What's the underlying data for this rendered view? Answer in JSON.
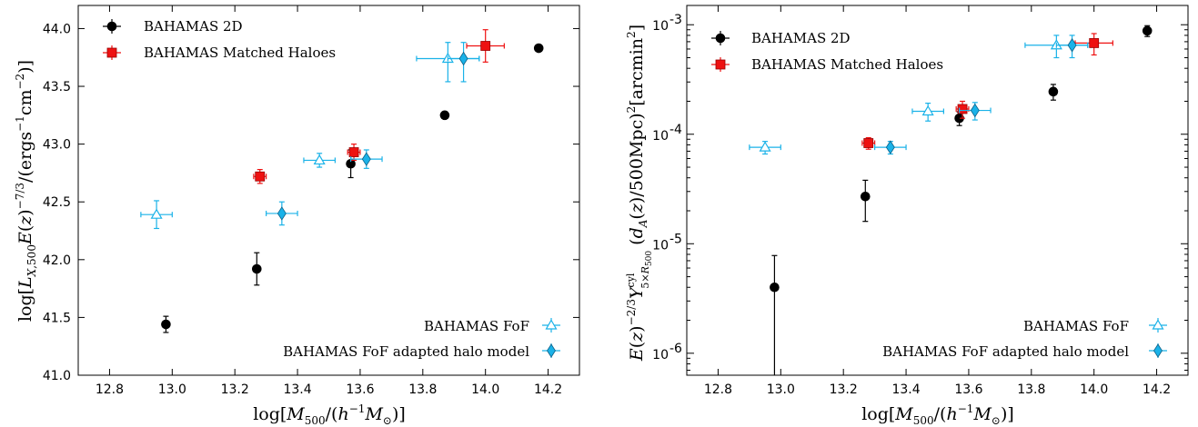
{
  "chart_data": [
    {
      "type": "scatter",
      "title": "",
      "xlabel": "log[M500/(h^-1 M⊙)]",
      "ylabel": "log[L_X,500 E(z)^-7/3 /(ergs^-1cm^-2)]",
      "xlim": [
        12.7,
        14.3
      ],
      "ylim": [
        41.0,
        44.2
      ],
      "yscale": "linear",
      "xticks": [
        "12.8",
        "13.0",
        "13.2",
        "13.4",
        "13.6",
        "13.8",
        "14.0",
        "14.2"
      ],
      "yticks": [
        "41.0",
        "41.5",
        "42.0",
        "42.5",
        "43.0",
        "43.5",
        "44.0"
      ],
      "legend_top": "top-left",
      "legend_bottom": "bottom-right",
      "series": [
        {
          "name": "BAHAMAS 2D",
          "marker": "circle",
          "color": "#000000",
          "points": [
            {
              "x": 12.98,
              "y": 41.44,
              "yerr": [
                0.07,
                0.07
              ]
            },
            {
              "x": 13.27,
              "y": 41.92,
              "yerr": [
                0.14,
                0.14
              ]
            },
            {
              "x": 13.57,
              "y": 42.83,
              "yerr": [
                0.12,
                0.12
              ]
            },
            {
              "x": 13.87,
              "y": 43.25
            },
            {
              "x": 14.17,
              "y": 43.83
            }
          ]
        },
        {
          "name": "BAHAMAS Matched Haloes",
          "marker": "square",
          "color": "#ee1111",
          "points": [
            {
              "x": 13.28,
              "y": 42.72,
              "xerr": 0.02,
              "yerr": [
                0.06,
                0.06
              ]
            },
            {
              "x": 13.58,
              "y": 42.93,
              "xerr": 0.02,
              "yerr": [
                0.07,
                0.07
              ]
            },
            {
              "x": 14.0,
              "y": 43.85,
              "xerr": 0.06,
              "yerr": [
                0.14,
                0.14
              ]
            }
          ]
        },
        {
          "name": "BAHAMAS FoF",
          "marker": "triangle",
          "color": "#1ab2e8",
          "points": [
            {
              "x": 12.95,
              "y": 42.39,
              "xerr": 0.05,
              "yerr": [
                0.12,
                0.12
              ]
            },
            {
              "x": 13.47,
              "y": 42.86,
              "xerr": 0.05,
              "yerr": [
                0.06,
                0.06
              ]
            },
            {
              "x": 13.88,
              "y": 43.74,
              "xerr": 0.1,
              "yerr": [
                0.2,
                0.14
              ]
            }
          ]
        },
        {
          "name": "BAHAMAS FoF adapted halo model",
          "marker": "diamond",
          "color": "#1ab2e8",
          "points": [
            {
              "x": 13.35,
              "y": 42.4,
              "xerr": 0.05,
              "yerr": [
                0.1,
                0.1
              ]
            },
            {
              "x": 13.62,
              "y": 42.87,
              "xerr": 0.05,
              "yerr": [
                0.08,
                0.08
              ]
            },
            {
              "x": 13.93,
              "y": 43.74,
              "xerr": 0.05,
              "yerr": [
                0.2,
                0.14
              ]
            }
          ]
        }
      ]
    },
    {
      "type": "scatter",
      "title": "",
      "xlabel": "log[M500/(h^-1 M⊙)]",
      "ylabel": "E(z)^-2/3 Y^cyl_5×R500 (d_A(z)/500Mpc)^2 [arcmin^2]",
      "xlim": [
        12.7,
        14.3
      ],
      "ylim": [
        6.3e-07,
        0.0015
      ],
      "yscale": "log",
      "xticks": [
        "12.8",
        "13.0",
        "13.2",
        "13.4",
        "13.6",
        "13.8",
        "14.0",
        "14.2"
      ],
      "yticks": [
        {
          "value": 1e-06,
          "base": "10",
          "exp": "-6"
        },
        {
          "value": 1e-05,
          "base": "10",
          "exp": "-5"
        },
        {
          "value": 0.0001,
          "base": "10",
          "exp": "-4"
        },
        {
          "value": 0.001,
          "base": "10",
          "exp": "-3"
        }
      ],
      "legend_top": "top-left",
      "legend_bottom": "bottom-right",
      "series": [
        {
          "name": "BAHAMAS 2D",
          "marker": "circle",
          "color": "#000000",
          "points": [
            {
              "x": 12.98,
              "y": 4e-06,
              "yerr": [
                3.4e-06,
                3.8e-06
              ]
            },
            {
              "x": 13.27,
              "y": 2.7e-05,
              "yerr": [
                1.1e-05,
                1.1e-05
              ]
            },
            {
              "x": 13.57,
              "y": 0.00014,
              "yerr": [
                2e-05,
                2e-05
              ]
            },
            {
              "x": 13.87,
              "y": 0.000245,
              "yerr": [
                4e-05,
                4e-05
              ]
            },
            {
              "x": 14.17,
              "y": 0.00088,
              "yerr": [
                0.0001,
                0.0001
              ]
            }
          ]
        },
        {
          "name": "BAHAMAS Matched Haloes",
          "marker": "square",
          "color": "#ee1111",
          "points": [
            {
              "x": 13.28,
              "y": 8.3e-05,
              "xerr": 0.02,
              "yerr": [
                1e-05,
                1e-05
              ]
            },
            {
              "x": 13.58,
              "y": 0.00017,
              "xerr": 0.02,
              "yerr": [
                3e-05,
                3e-05
              ]
            },
            {
              "x": 14.0,
              "y": 0.00068,
              "xerr": 0.06,
              "yerr": [
                0.00015,
                0.00015
              ]
            }
          ]
        },
        {
          "name": "BAHAMAS FoF",
          "marker": "triangle",
          "color": "#1ab2e8",
          "points": [
            {
              "x": 12.95,
              "y": 7.6e-05,
              "xerr": 0.05,
              "yerr": [
                1e-05,
                1e-05
              ]
            },
            {
              "x": 13.47,
              "y": 0.000162,
              "xerr": 0.05,
              "yerr": [
                3e-05,
                3e-05
              ]
            },
            {
              "x": 13.88,
              "y": 0.00065,
              "xerr": 0.1,
              "yerr": [
                0.00015,
                0.00015
              ]
            }
          ]
        },
        {
          "name": "BAHAMAS FoF adapted halo model",
          "marker": "diamond",
          "color": "#1ab2e8",
          "points": [
            {
              "x": 13.35,
              "y": 7.6e-05,
              "xerr": 0.05,
              "yerr": [
                1e-05,
                1e-05
              ]
            },
            {
              "x": 13.62,
              "y": 0.000165,
              "xerr": 0.05,
              "yerr": [
                3e-05,
                3e-05
              ]
            },
            {
              "x": 13.93,
              "y": 0.00065,
              "xerr": 0.05,
              "yerr": [
                0.00015,
                0.00015
              ]
            }
          ]
        }
      ]
    }
  ]
}
